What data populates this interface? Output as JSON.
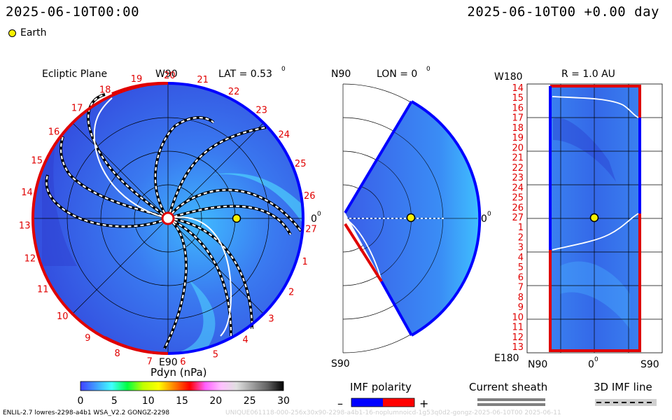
{
  "header": {
    "left_timestamp": "2025-06-10T00:00",
    "right_timestamp": "2025-06-10T00 +0.00 day"
  },
  "legend": {
    "earth_label": "Earth",
    "earth_color": "#f7f000"
  },
  "ecliptic_panel": {
    "title": "Ecliptic Plane",
    "top_label": "W90",
    "lat_label": "LAT = 0.53",
    "lat_degree_mark": "0",
    "zero_label": "0",
    "zero_degree_mark": "0",
    "bottom_label": "E90",
    "rim_numbers": [
      "1",
      "2",
      "3",
      "4",
      "5",
      "6",
      "7",
      "8",
      "9",
      "10",
      "11",
      "12",
      "13",
      "14",
      "15",
      "16",
      "17",
      "18",
      "19",
      "20",
      "21",
      "22",
      "23",
      "24",
      "25",
      "26",
      "27"
    ]
  },
  "meridional_panel": {
    "top_label": "N90",
    "lon_label": "LON = 0",
    "lon_degree_mark": "0",
    "zero_label": "0",
    "zero_degree_mark": "0",
    "bottom_label": "S90"
  },
  "radial_panel": {
    "top_left_label": "W180",
    "r_label": "R = 1.0 AU",
    "bottom_left_label": "E180",
    "bottom_labels": [
      "N90",
      "0",
      "S90"
    ],
    "bottom_zero_degree_mark": "0",
    "row_numbers": [
      "14",
      "15",
      "16",
      "17",
      "18",
      "19",
      "20",
      "21",
      "22",
      "23",
      "24",
      "25",
      "26",
      "27",
      "1",
      "2",
      "3",
      "4",
      "5",
      "6",
      "7",
      "8",
      "9",
      "10",
      "11",
      "12",
      "13"
    ]
  },
  "colorbar": {
    "title": "Pdyn (nPa)",
    "ticks": [
      "0",
      "5",
      "10",
      "15",
      "20",
      "25",
      "30"
    ],
    "stops": [
      "#4040ff",
      "#40a0ff",
      "#40ffff",
      "#00ff40",
      "#c0ff00",
      "#ffff00",
      "#ff8000",
      "#ff0000",
      "#ff60ff",
      "#ffc0ff",
      "#e0e0e0",
      "#a0a0a0",
      "#606060",
      "#000000"
    ]
  },
  "imf_polarity": {
    "title": "IMF polarity",
    "minus": "–",
    "plus": "+",
    "neg_color": "#0000ff",
    "pos_color": "#ff0000"
  },
  "current_sheath": {
    "title": "Current sheath"
  },
  "imf_line": {
    "title": "3D IMF line"
  },
  "footer": {
    "left": "ENLIL-2.7 lowres-2298-a4b1 WSA_V2.2 GONGZ-2298",
    "faint": "UNIQUE061118-000-256x30x90-2298-a4b1-16-noplumnoicd-1g53q0d2-gongz-2025-06-10T00   2025-06-11"
  }
}
